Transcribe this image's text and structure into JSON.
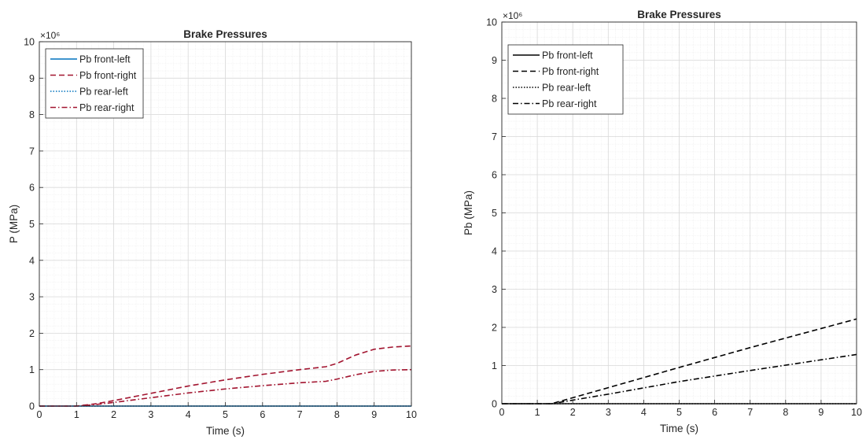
{
  "chart_data": [
    {
      "type": "line",
      "title": "Brake Pressures",
      "xlabel": "Time (s)",
      "ylabel": "P (MPa)",
      "exponent_label": "×10⁶",
      "xlim": [
        0,
        10
      ],
      "ylim": [
        0,
        10000000
      ],
      "xticks": [
        0,
        1,
        2,
        3,
        4,
        5,
        6,
        7,
        8,
        9,
        10
      ],
      "yticks": [
        0,
        1000000,
        2000000,
        3000000,
        4000000,
        5000000,
        6000000,
        7000000,
        8000000,
        9000000,
        10000000
      ],
      "ytick_labels": [
        "0",
        "1",
        "2",
        "3",
        "4",
        "5",
        "6",
        "7",
        "8",
        "9",
        "10"
      ],
      "grid": true,
      "minor_grid": true,
      "legend_position": "top-left",
      "series": [
        {
          "name": "Pb front-left",
          "color": "#0072BD",
          "style": "solid",
          "x": [
            0,
            10
          ],
          "y": [
            0,
            0
          ]
        },
        {
          "name": "Pb front-right",
          "color": "#A2142F",
          "style": "dashed",
          "x": [
            0,
            1,
            1.5,
            2,
            3,
            4,
            5,
            6,
            7,
            7.7,
            8,
            8.5,
            9,
            9.5,
            10
          ],
          "y": [
            0,
            0,
            60000,
            150000,
            350000,
            550000,
            720000,
            870000,
            1000000,
            1080000,
            1170000,
            1400000,
            1560000,
            1620000,
            1650000
          ]
        },
        {
          "name": "Pb rear-left",
          "color": "#0072BD",
          "style": "dotted",
          "x": [
            0,
            10
          ],
          "y": [
            0,
            0
          ]
        },
        {
          "name": "Pb rear-right",
          "color": "#A2142F",
          "style": "dashdot",
          "x": [
            0,
            1,
            1.5,
            2,
            3,
            4,
            5,
            6,
            7,
            7.7,
            8,
            8.5,
            9,
            9.5,
            10
          ],
          "y": [
            0,
            0,
            40000,
            100000,
            230000,
            360000,
            470000,
            560000,
            640000,
            680000,
            740000,
            860000,
            950000,
            990000,
            1000000
          ]
        }
      ]
    },
    {
      "type": "line",
      "title": "Brake Pressures",
      "xlabel": "Time (s)",
      "ylabel": "Pb (MPa)",
      "exponent_label": "×10⁶",
      "xlim": [
        0,
        10
      ],
      "ylim": [
        0,
        10000000
      ],
      "xticks": [
        0,
        1,
        2,
        3,
        4,
        5,
        6,
        7,
        8,
        9,
        10
      ],
      "yticks": [
        0,
        1000000,
        2000000,
        3000000,
        4000000,
        5000000,
        6000000,
        7000000,
        8000000,
        9000000,
        10000000
      ],
      "ytick_labels": [
        "0",
        "1",
        "2",
        "3",
        "4",
        "5",
        "6",
        "7",
        "8",
        "9",
        "10"
      ],
      "grid": true,
      "minor_grid": true,
      "legend_position": "top-left",
      "series": [
        {
          "name": "Pb front-left",
          "color": "#000000",
          "style": "solid",
          "x": [
            0,
            10
          ],
          "y": [
            0,
            0
          ]
        },
        {
          "name": "Pb front-right",
          "color": "#000000",
          "style": "dashed",
          "x": [
            0,
            1.4,
            3,
            5,
            7,
            10
          ],
          "y": [
            0,
            0,
            420000,
            950000,
            1470000,
            2220000
          ]
        },
        {
          "name": "Pb rear-left",
          "color": "#000000",
          "style": "dotted",
          "x": [
            0,
            10
          ],
          "y": [
            0,
            0
          ]
        },
        {
          "name": "Pb rear-right",
          "color": "#000000",
          "style": "dashdot",
          "x": [
            0,
            1.4,
            3,
            5,
            7,
            10
          ],
          "y": [
            0,
            0,
            250000,
            580000,
            870000,
            1290000
          ]
        }
      ]
    }
  ]
}
